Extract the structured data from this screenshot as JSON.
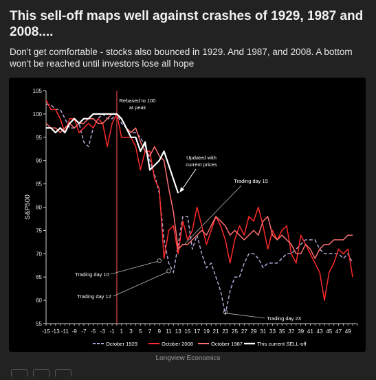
{
  "title": "This sell-off maps well against crashes of 1929, 1987 and 2008....",
  "subtitle": "Don't get comfortable - stocks also bounced in 1929. And 1987, and 2008. A bottom won't be reached until investors lose all hope",
  "source": "Longview Economics",
  "chart_data": {
    "type": "line",
    "ylabel": "S&P500",
    "xlabel": "",
    "xlim": [
      -15,
      51
    ],
    "ylim": [
      55,
      105
    ],
    "yticks": [
      55,
      60,
      65,
      70,
      75,
      80,
      85,
      90,
      95,
      100,
      105
    ],
    "xticks": [
      "-15",
      "-13",
      "-11",
      "-9",
      "-7",
      "-5",
      "-3",
      "-1",
      "1",
      "3",
      "5",
      "7",
      "9",
      "11",
      "13",
      "15",
      "17",
      "19",
      "21",
      "23",
      "25",
      "27",
      "29",
      "31",
      "33",
      "35",
      "37",
      "39",
      "41",
      "43",
      "45",
      "47",
      "49"
    ],
    "peak_line_x": 0,
    "annotations": {
      "rebased": [
        "Rebased to 100",
        "at peak"
      ],
      "updated": [
        "Updated with",
        "current prices"
      ],
      "day15": "Trading day 15",
      "day10": "Trading day 10",
      "day12": "Trading day 12",
      "day23": "Trading day 23"
    },
    "series": [
      {
        "name": "October 1929",
        "color": "#b3a7d6",
        "style": "dashed",
        "x": [
          -15,
          -14,
          -13,
          -12,
          -11,
          -10,
          -9,
          -8,
          -7,
          -6,
          -5,
          -4,
          -3,
          -2,
          -1,
          0,
          1,
          2,
          3,
          4,
          5,
          6,
          7,
          8,
          9,
          10,
          11,
          12,
          13,
          14,
          15,
          16,
          17,
          18,
          19,
          20,
          21,
          22,
          23,
          24,
          25,
          26,
          27,
          28,
          29,
          30,
          31,
          32,
          33,
          34,
          35,
          36,
          37,
          38,
          39,
          40,
          41,
          42,
          43,
          44,
          45,
          46,
          47,
          48,
          49,
          50
        ],
        "y": [
          102,
          102,
          101,
          101,
          99,
          97,
          97,
          98,
          94,
          93,
          97,
          99,
          100,
          99,
          99,
          100,
          98,
          97,
          96,
          96,
          95,
          93,
          90,
          87,
          83,
          73,
          68,
          66,
          72,
          78,
          78,
          71,
          74,
          70,
          67,
          68,
          65,
          62,
          57,
          62,
          65,
          65,
          68,
          70,
          70,
          69,
          67,
          68,
          68,
          68,
          69,
          70,
          70,
          71,
          72,
          73,
          73,
          73,
          71,
          70,
          70,
          70,
          70,
          69,
          70,
          68
        ]
      },
      {
        "name": "October 2008",
        "color": "#ff2a2a",
        "style": "solid",
        "x": [
          -15,
          -14,
          -13,
          -12,
          -11,
          -10,
          -9,
          -8,
          -7,
          -6,
          -5,
          -4,
          -3,
          -2,
          -1,
          0,
          1,
          2,
          3,
          4,
          5,
          6,
          7,
          8,
          9,
          10,
          11,
          12,
          13,
          14,
          15,
          16,
          17,
          18,
          19,
          20,
          21,
          22,
          23,
          24,
          25,
          26,
          27,
          28,
          29,
          30,
          31,
          32,
          33,
          34,
          35,
          36,
          37,
          38,
          39,
          40,
          41,
          42,
          43,
          44,
          45,
          46,
          47,
          48,
          49,
          50
        ],
        "y": [
          103,
          101,
          101,
          99,
          96,
          99,
          99,
          96,
          97,
          98,
          97,
          99,
          98,
          93,
          98,
          100,
          95,
          95,
          95,
          93,
          88,
          92,
          92,
          86,
          84,
          69,
          75,
          76,
          70,
          77,
          73,
          75,
          80,
          76,
          72,
          75,
          78,
          76,
          73,
          68,
          73,
          76,
          74,
          78,
          77,
          80,
          76,
          71,
          75,
          73,
          75,
          76,
          70,
          68,
          74,
          72,
          70,
          68,
          66,
          60,
          66,
          68,
          71,
          70,
          71,
          65
        ]
      },
      {
        "name": "October 1987",
        "color": "#ff7070",
        "style": "solid",
        "x": [
          -15,
          -14,
          -13,
          -12,
          -11,
          -10,
          -9,
          -8,
          -7,
          -6,
          -5,
          -4,
          -3,
          -2,
          -1,
          0,
          1,
          2,
          3,
          4,
          5,
          6,
          7,
          8,
          9,
          10,
          11,
          12,
          13,
          14,
          15,
          16,
          17,
          18,
          19,
          20,
          21,
          22,
          23,
          24,
          25,
          26,
          27,
          28,
          29,
          30,
          31,
          32,
          33,
          34,
          35,
          36,
          37,
          38,
          39,
          40,
          41,
          42,
          43,
          44,
          45,
          46,
          47,
          48,
          49,
          50
        ],
        "y": [
          98,
          97,
          97,
          96,
          97,
          98,
          97,
          98,
          98,
          99,
          99,
          98,
          98,
          99,
          100,
          100,
          99,
          97,
          96,
          97,
          94,
          92,
          91,
          93,
          91,
          90,
          84,
          79,
          71,
          72,
          72,
          73,
          74,
          75,
          74,
          76,
          78,
          77,
          76,
          74,
          75,
          74,
          73,
          74,
          75,
          74,
          77,
          78,
          74,
          73,
          74,
          73,
          72,
          70,
          70,
          72,
          71,
          69,
          71,
          72,
          72,
          73,
          73,
          73,
          74,
          74
        ]
      },
      {
        "name": "This current SELL-off",
        "color": "#ffffff",
        "style": "solid",
        "x": [
          -15,
          -14,
          -13,
          -12,
          -11,
          -10,
          -9,
          -8,
          -7,
          -6,
          -5,
          -4,
          -3,
          -2,
          -1,
          0,
          1,
          2,
          3,
          4,
          5,
          6,
          7,
          8,
          9,
          10,
          11,
          12,
          13
        ],
        "y": [
          97,
          97,
          96,
          97,
          96,
          98,
          99,
          98,
          99,
          99,
          100,
          100,
          100,
          100,
          100,
          100,
          99,
          97,
          95,
          95,
          92,
          94,
          88,
          89,
          90,
          92,
          89,
          86,
          83
        ]
      }
    ],
    "markers": [
      {
        "x": 9,
        "y": 68.5
      },
      {
        "x": 11,
        "y": 66.3
      },
      {
        "x": 23,
        "y": 57.5
      }
    ]
  }
}
